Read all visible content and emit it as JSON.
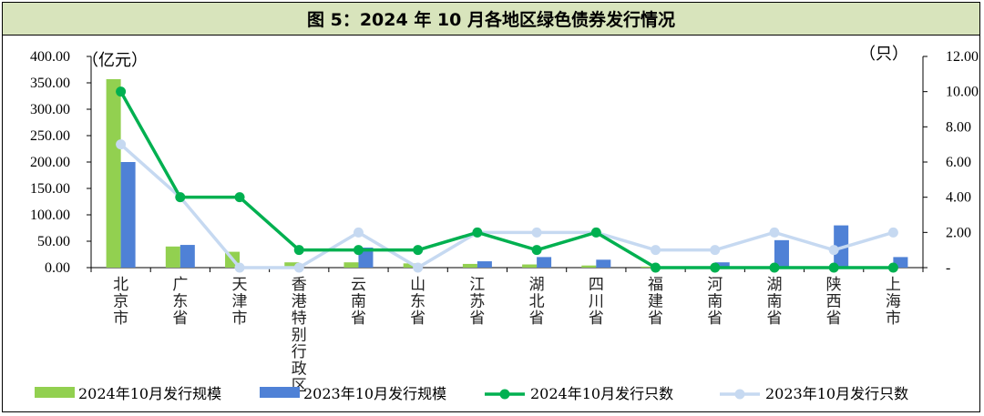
{
  "title": "图 5：2024 年 10 月各地区绿色债券发行情况",
  "chart_data": {
    "type": "bar+line",
    "categories": [
      "北京市",
      "广东省",
      "天津市",
      "香港特别行政区",
      "云南省",
      "山东省",
      "江苏省",
      "湖北省",
      "四川省",
      "福建省",
      "河南省",
      "湖南省",
      "陕西省",
      "上海市"
    ],
    "left_axis": {
      "unit": "（亿元）",
      "ticks": [
        "400.00",
        "350.00",
        "300.00",
        "250.00",
        "200.00",
        "150.00",
        "100.00",
        "50.00",
        "0.00"
      ],
      "ylim": [
        0,
        400
      ]
    },
    "right_axis": {
      "unit": "（只）",
      "ticks": [
        "12.00",
        "10.00",
        "8.00",
        "6.00",
        "4.00",
        "2.00",
        "-"
      ],
      "ylim": [
        0,
        12
      ]
    },
    "series": [
      {
        "name": "2024年10月发行规模",
        "type": "bar",
        "axis": "left",
        "color": "#92d050",
        "values": [
          357,
          40,
          30,
          10,
          10,
          8,
          7,
          6,
          4,
          2,
          0,
          0,
          0,
          0
        ]
      },
      {
        "name": "2023年10月发行规模",
        "type": "bar",
        "axis": "left",
        "color": "#4f81d6",
        "values": [
          200,
          43,
          0,
          0,
          38,
          0,
          12,
          20,
          15,
          2,
          10,
          52,
          80,
          20
        ]
      },
      {
        "name": "2024年10月发行只数",
        "type": "line",
        "axis": "right",
        "color": "#00b050",
        "values": [
          10,
          4,
          4,
          1,
          1,
          1,
          2,
          1,
          2,
          0,
          0,
          0,
          0,
          0
        ]
      },
      {
        "name": "2023年10月发行只数",
        "type": "line",
        "axis": "right",
        "color": "#c6d9f1",
        "values": [
          7,
          4,
          0,
          0,
          2,
          0,
          2,
          2,
          2,
          1,
          1,
          2,
          1,
          2
        ]
      }
    ],
    "legend_position": "bottom",
    "grid": false
  }
}
